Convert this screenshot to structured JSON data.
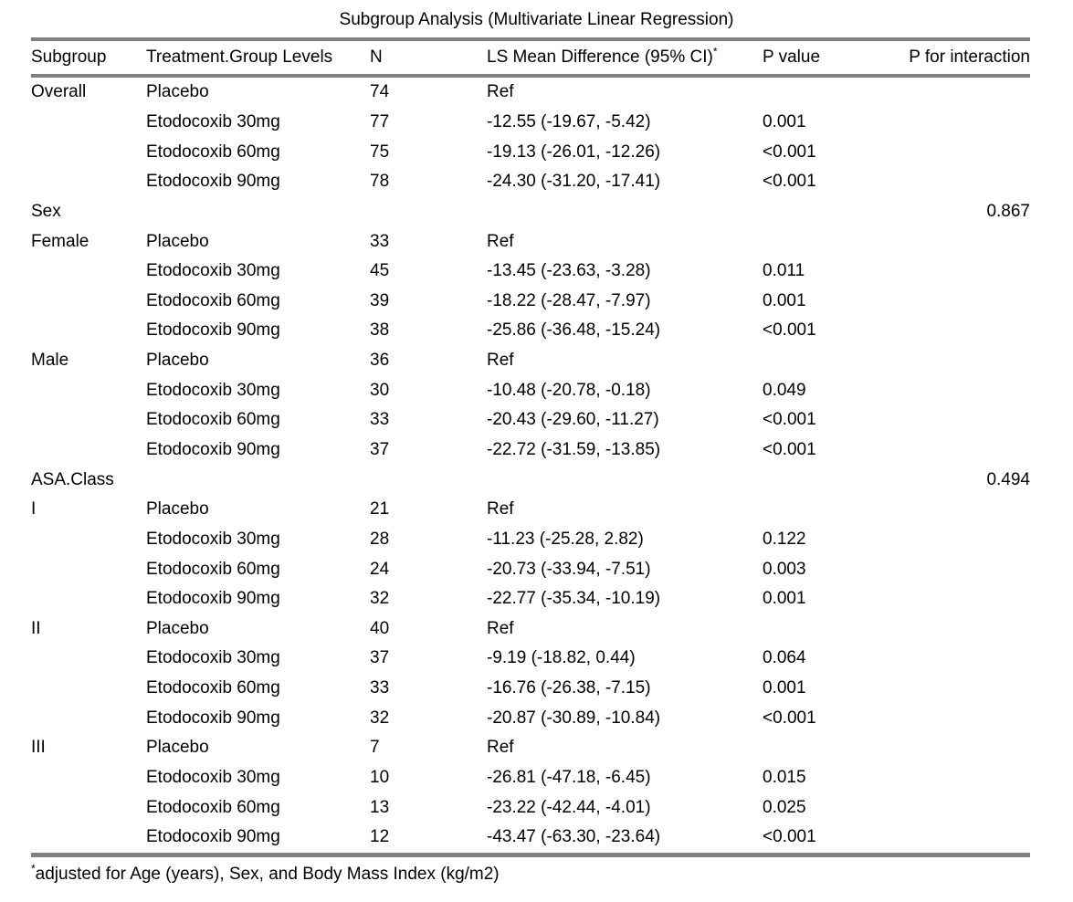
{
  "title": "Subgroup Analysis (Multivariate Linear Regression)",
  "footnote": {
    "sup": "*",
    "text": "adjusted for Age (years), Sex, and Body Mass Index (kg/m2)"
  },
  "rule_color": "#808080",
  "table": {
    "columns": [
      {
        "label": "Subgroup"
      },
      {
        "label": "Treatment.Group Levels"
      },
      {
        "label": "N"
      },
      {
        "label": "LS Mean Difference (95% CI)",
        "sup": "*"
      },
      {
        "label": "P value"
      },
      {
        "label": "P for interaction"
      }
    ],
    "rows": [
      {
        "subgroup": "Overall",
        "treatment": "Placebo",
        "n": "74",
        "lsmd": "Ref",
        "pvalue": "",
        "pinteraction": ""
      },
      {
        "subgroup": "",
        "treatment": "Etodocoxib 30mg",
        "n": "77",
        "lsmd": "-12.55 (-19.67, -5.42)",
        "pvalue": "0.001",
        "pinteraction": ""
      },
      {
        "subgroup": "",
        "treatment": "Etodocoxib 60mg",
        "n": "75",
        "lsmd": "-19.13 (-26.01, -12.26)",
        "pvalue": "<0.001",
        "pinteraction": ""
      },
      {
        "subgroup": "",
        "treatment": "Etodocoxib 90mg",
        "n": "78",
        "lsmd": "-24.30 (-31.20, -17.41)",
        "pvalue": "<0.001",
        "pinteraction": ""
      },
      {
        "subgroup": "Sex",
        "treatment": "",
        "n": "",
        "lsmd": "",
        "pvalue": "",
        "pinteraction": "0.867"
      },
      {
        "subgroup": "Female",
        "treatment": "Placebo",
        "n": "33",
        "lsmd": "Ref",
        "pvalue": "",
        "pinteraction": ""
      },
      {
        "subgroup": "",
        "treatment": "Etodocoxib 30mg",
        "n": "45",
        "lsmd": "-13.45 (-23.63, -3.28)",
        "pvalue": "0.011",
        "pinteraction": ""
      },
      {
        "subgroup": "",
        "treatment": "Etodocoxib 60mg",
        "n": "39",
        "lsmd": "-18.22 (-28.47, -7.97)",
        "pvalue": "0.001",
        "pinteraction": ""
      },
      {
        "subgroup": "",
        "treatment": "Etodocoxib 90mg",
        "n": "38",
        "lsmd": "-25.86 (-36.48, -15.24)",
        "pvalue": "<0.001",
        "pinteraction": ""
      },
      {
        "subgroup": "Male",
        "treatment": "Placebo",
        "n": "36",
        "lsmd": "Ref",
        "pvalue": "",
        "pinteraction": ""
      },
      {
        "subgroup": "",
        "treatment": "Etodocoxib 30mg",
        "n": "30",
        "lsmd": "-10.48 (-20.78, -0.18)",
        "pvalue": "0.049",
        "pinteraction": ""
      },
      {
        "subgroup": "",
        "treatment": "Etodocoxib 60mg",
        "n": "33",
        "lsmd": "-20.43 (-29.60, -11.27)",
        "pvalue": "<0.001",
        "pinteraction": ""
      },
      {
        "subgroup": "",
        "treatment": "Etodocoxib 90mg",
        "n": "37",
        "lsmd": "-22.72 (-31.59, -13.85)",
        "pvalue": "<0.001",
        "pinteraction": ""
      },
      {
        "subgroup": "ASA.Class",
        "treatment": "",
        "n": "",
        "lsmd": "",
        "pvalue": "",
        "pinteraction": "0.494"
      },
      {
        "subgroup": "I",
        "treatment": "Placebo",
        "n": "21",
        "lsmd": "Ref",
        "pvalue": "",
        "pinteraction": ""
      },
      {
        "subgroup": "",
        "treatment": "Etodocoxib 30mg",
        "n": "28",
        "lsmd": "-11.23 (-25.28, 2.82)",
        "pvalue": "0.122",
        "pinteraction": ""
      },
      {
        "subgroup": "",
        "treatment": "Etodocoxib 60mg",
        "n": "24",
        "lsmd": "-20.73 (-33.94, -7.51)",
        "pvalue": "0.003",
        "pinteraction": ""
      },
      {
        "subgroup": "",
        "treatment": "Etodocoxib 90mg",
        "n": "32",
        "lsmd": "-22.77 (-35.34, -10.19)",
        "pvalue": "0.001",
        "pinteraction": ""
      },
      {
        "subgroup": "II",
        "treatment": "Placebo",
        "n": "40",
        "lsmd": "Ref",
        "pvalue": "",
        "pinteraction": ""
      },
      {
        "subgroup": "",
        "treatment": "Etodocoxib 30mg",
        "n": "37",
        "lsmd": "-9.19 (-18.82, 0.44)",
        "pvalue": "0.064",
        "pinteraction": ""
      },
      {
        "subgroup": "",
        "treatment": "Etodocoxib 60mg",
        "n": "33",
        "lsmd": "-16.76 (-26.38, -7.15)",
        "pvalue": "0.001",
        "pinteraction": ""
      },
      {
        "subgroup": "",
        "treatment": "Etodocoxib 90mg",
        "n": "32",
        "lsmd": "-20.87 (-30.89, -10.84)",
        "pvalue": "<0.001",
        "pinteraction": ""
      },
      {
        "subgroup": "III",
        "treatment": "Placebo",
        "n": "7",
        "lsmd": "Ref",
        "pvalue": "",
        "pinteraction": ""
      },
      {
        "subgroup": "",
        "treatment": "Etodocoxib 30mg",
        "n": "10",
        "lsmd": "-26.81 (-47.18, -6.45)",
        "pvalue": "0.015",
        "pinteraction": ""
      },
      {
        "subgroup": "",
        "treatment": "Etodocoxib 60mg",
        "n": "13",
        "lsmd": "-23.22 (-42.44, -4.01)",
        "pvalue": "0.025",
        "pinteraction": ""
      },
      {
        "subgroup": "",
        "treatment": "Etodocoxib 90mg",
        "n": "12",
        "lsmd": "-43.47 (-63.30, -23.64)",
        "pvalue": "<0.001",
        "pinteraction": ""
      }
    ]
  }
}
